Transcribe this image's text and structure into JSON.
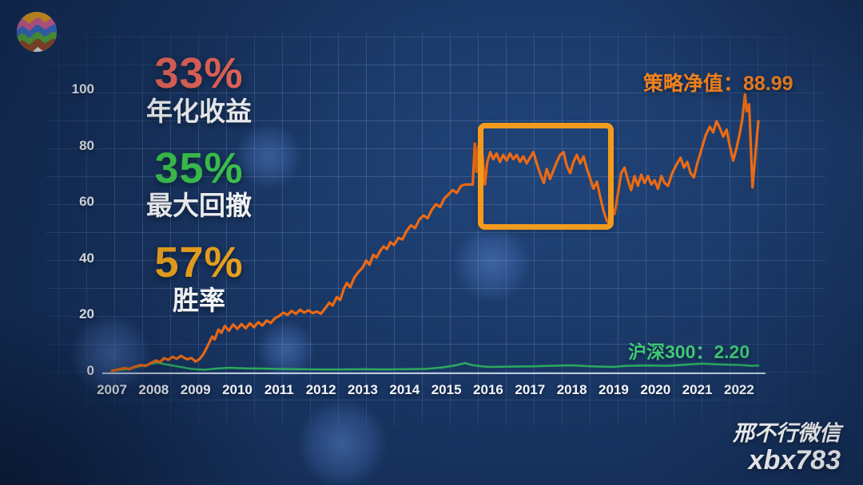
{
  "logo": {
    "name": "colorful-zigzag-logo"
  },
  "stats": [
    {
      "value": "33%",
      "label": "年化收益",
      "color": "#f4695c"
    },
    {
      "value": "35%",
      "label": "最大回撤",
      "color": "#3ecb4f"
    },
    {
      "value": "57%",
      "label": "胜率",
      "color": "#f2a51d"
    }
  ],
  "annotations": {
    "strategy_label": "策略净值：88.99",
    "benchmark_label": "沪深300：2.20"
  },
  "watermark": {
    "line1": "邢不行微信",
    "line2": "xbx783"
  },
  "colors": {
    "strategy_line": "#ec6a13",
    "benchmark_line": "#2aa95e",
    "strategy_label": "#f5821d",
    "benchmark_label": "#3fc878",
    "highlight_box": "#f39b1d",
    "axis_line": "#d9e4f4",
    "background": "#17335f"
  },
  "chart_data": {
    "type": "line",
    "title": "",
    "xlabel": "",
    "ylabel": "",
    "x_ticks": [
      2007,
      2008,
      2009,
      2010,
      2011,
      2012,
      2013,
      2014,
      2015,
      2016,
      2017,
      2018,
      2019,
      2020,
      2021,
      2022
    ],
    "y_ticks": [
      0,
      20,
      40,
      60,
      80,
      100
    ],
    "x_range": [
      2007.0,
      2022.6
    ],
    "y_range": [
      0,
      105
    ],
    "grid": true,
    "legend_position": "none",
    "highlight_box": {
      "x_from": 2015.75,
      "x_to": 2019.0,
      "y_from": 50.5,
      "y_to": 88.5
    },
    "series": [
      {
        "name": "策略净值",
        "color": "#ec6a13",
        "final_value": 88.99,
        "points": [
          [
            2007.0,
            0.3
          ],
          [
            2007.15,
            0.8
          ],
          [
            2007.3,
            1.3
          ],
          [
            2007.42,
            0.9
          ],
          [
            2007.55,
            1.8
          ],
          [
            2007.7,
            2.4
          ],
          [
            2007.8,
            2.0
          ],
          [
            2007.95,
            3.2
          ],
          [
            2008.05,
            4.0
          ],
          [
            2008.15,
            3.4
          ],
          [
            2008.25,
            4.8
          ],
          [
            2008.35,
            4.2
          ],
          [
            2008.45,
            5.3
          ],
          [
            2008.55,
            4.6
          ],
          [
            2008.65,
            5.6
          ],
          [
            2008.8,
            4.4
          ],
          [
            2008.9,
            4.9
          ],
          [
            2009.0,
            3.6
          ],
          [
            2009.1,
            4.5
          ],
          [
            2009.2,
            6.5
          ],
          [
            2009.3,
            9.5
          ],
          [
            2009.4,
            12.5
          ],
          [
            2009.46,
            11.5
          ],
          [
            2009.55,
            15.0
          ],
          [
            2009.62,
            13.8
          ],
          [
            2009.7,
            16.3
          ],
          [
            2009.8,
            14.6
          ],
          [
            2009.9,
            16.8
          ],
          [
            2010.0,
            15.2
          ],
          [
            2010.1,
            16.9
          ],
          [
            2010.2,
            15.4
          ],
          [
            2010.3,
            17.2
          ],
          [
            2010.4,
            15.8
          ],
          [
            2010.5,
            17.6
          ],
          [
            2010.6,
            16.4
          ],
          [
            2010.7,
            18.2
          ],
          [
            2010.8,
            17.3
          ],
          [
            2010.9,
            19.0
          ],
          [
            2011.0,
            19.8
          ],
          [
            2011.1,
            21.0
          ],
          [
            2011.2,
            20.2
          ],
          [
            2011.3,
            21.6
          ],
          [
            2011.4,
            20.6
          ],
          [
            2011.5,
            22.0
          ],
          [
            2011.6,
            21.0
          ],
          [
            2011.7,
            21.8
          ],
          [
            2011.8,
            20.8
          ],
          [
            2011.9,
            21.4
          ],
          [
            2012.0,
            20.6
          ],
          [
            2012.1,
            22.5
          ],
          [
            2012.2,
            24.5
          ],
          [
            2012.28,
            23.5
          ],
          [
            2012.38,
            26.5
          ],
          [
            2012.46,
            25.5
          ],
          [
            2012.55,
            29.5
          ],
          [
            2012.62,
            31.5
          ],
          [
            2012.7,
            30.0
          ],
          [
            2012.8,
            33.5
          ],
          [
            2012.9,
            35.5
          ],
          [
            2013.0,
            37.0
          ],
          [
            2013.08,
            39.5
          ],
          [
            2013.16,
            38.0
          ],
          [
            2013.25,
            41.5
          ],
          [
            2013.33,
            40.5
          ],
          [
            2013.42,
            43.0
          ],
          [
            2013.5,
            44.5
          ],
          [
            2013.58,
            43.5
          ],
          [
            2013.66,
            46.0
          ],
          [
            2013.75,
            45.0
          ],
          [
            2013.85,
            47.5
          ],
          [
            2013.95,
            47.0
          ],
          [
            2014.05,
            50.0
          ],
          [
            2014.15,
            52.0
          ],
          [
            2014.25,
            51.0
          ],
          [
            2014.35,
            54.0
          ],
          [
            2014.45,
            55.5
          ],
          [
            2014.55,
            54.5
          ],
          [
            2014.65,
            57.5
          ],
          [
            2014.75,
            59.5
          ],
          [
            2014.85,
            58.5
          ],
          [
            2014.95,
            61.5
          ],
          [
            2015.05,
            63.0
          ],
          [
            2015.15,
            64.5
          ],
          [
            2015.25,
            63.5
          ],
          [
            2015.35,
            66.0
          ],
          [
            2015.45,
            66.5
          ],
          [
            2015.55,
            66.5
          ],
          [
            2015.63,
            66.5
          ],
          [
            2015.68,
            81.0
          ],
          [
            2015.72,
            71.0
          ],
          [
            2015.76,
            80.0
          ],
          [
            2015.81,
            74.0
          ],
          [
            2015.86,
            77.5
          ],
          [
            2015.92,
            66.5
          ],
          [
            2015.98,
            74.5
          ],
          [
            2016.05,
            78.0
          ],
          [
            2016.12,
            75.5
          ],
          [
            2016.2,
            77.5
          ],
          [
            2016.28,
            74.5
          ],
          [
            2016.36,
            77.0
          ],
          [
            2016.44,
            75.0
          ],
          [
            2016.52,
            77.5
          ],
          [
            2016.6,
            75.5
          ],
          [
            2016.68,
            77.0
          ],
          [
            2016.76,
            74.5
          ],
          [
            2016.84,
            76.5
          ],
          [
            2016.92,
            74.0
          ],
          [
            2017.0,
            76.0
          ],
          [
            2017.08,
            78.0
          ],
          [
            2017.16,
            74.0
          ],
          [
            2017.25,
            70.0
          ],
          [
            2017.33,
            67.0
          ],
          [
            2017.4,
            72.0
          ],
          [
            2017.48,
            68.5
          ],
          [
            2017.56,
            71.5
          ],
          [
            2017.64,
            74.5
          ],
          [
            2017.72,
            77.0
          ],
          [
            2017.8,
            78.0
          ],
          [
            2017.88,
            73.0
          ],
          [
            2017.96,
            70.5
          ],
          [
            2018.04,
            74.5
          ],
          [
            2018.12,
            77.0
          ],
          [
            2018.2,
            74.0
          ],
          [
            2018.28,
            76.5
          ],
          [
            2018.36,
            72.0
          ],
          [
            2018.44,
            68.5
          ],
          [
            2018.52,
            65.0
          ],
          [
            2018.6,
            67.5
          ],
          [
            2018.68,
            62.0
          ],
          [
            2018.76,
            57.0
          ],
          [
            2018.84,
            53.5
          ],
          [
            2018.9,
            52.5
          ],
          [
            2018.96,
            58.5
          ],
          [
            2019.02,
            56.0
          ],
          [
            2019.1,
            63.0
          ],
          [
            2019.18,
            70.5
          ],
          [
            2019.26,
            72.5
          ],
          [
            2019.34,
            68.0
          ],
          [
            2019.42,
            64.5
          ],
          [
            2019.5,
            69.5
          ],
          [
            2019.58,
            66.0
          ],
          [
            2019.66,
            70.0
          ],
          [
            2019.74,
            67.0
          ],
          [
            2019.82,
            69.5
          ],
          [
            2019.9,
            66.5
          ],
          [
            2019.98,
            68.0
          ],
          [
            2020.06,
            65.0
          ],
          [
            2020.14,
            69.5
          ],
          [
            2020.22,
            67.0
          ],
          [
            2020.3,
            66.0
          ],
          [
            2020.4,
            70.5
          ],
          [
            2020.5,
            73.5
          ],
          [
            2020.6,
            76.0
          ],
          [
            2020.68,
            72.5
          ],
          [
            2020.76,
            74.5
          ],
          [
            2020.84,
            70.5
          ],
          [
            2020.92,
            69.0
          ],
          [
            2021.0,
            74.0
          ],
          [
            2021.1,
            79.0
          ],
          [
            2021.2,
            84.0
          ],
          [
            2021.3,
            87.0
          ],
          [
            2021.38,
            85.0
          ],
          [
            2021.46,
            89.0
          ],
          [
            2021.54,
            86.5
          ],
          [
            2021.62,
            83.5
          ],
          [
            2021.7,
            86.0
          ],
          [
            2021.78,
            80.0
          ],
          [
            2021.86,
            75.0
          ],
          [
            2021.94,
            79.5
          ],
          [
            2022.02,
            85.0
          ],
          [
            2022.08,
            90.0
          ],
          [
            2022.14,
            98.5
          ],
          [
            2022.18,
            92.5
          ],
          [
            2022.24,
            95.0
          ],
          [
            2022.32,
            65.5
          ],
          [
            2022.4,
            79.0
          ],
          [
            2022.46,
            88.99
          ]
        ]
      },
      {
        "name": "沪深300",
        "color": "#2aa95e",
        "final_value": 2.2,
        "points": [
          [
            2007.0,
            0.3
          ],
          [
            2007.3,
            0.8
          ],
          [
            2007.6,
            1.7
          ],
          [
            2007.9,
            2.7
          ],
          [
            2008.1,
            3.2
          ],
          [
            2008.3,
            2.6
          ],
          [
            2008.6,
            1.8
          ],
          [
            2008.9,
            1.0
          ],
          [
            2009.2,
            0.7
          ],
          [
            2009.5,
            1.1
          ],
          [
            2009.8,
            1.4
          ],
          [
            2010.2,
            1.2
          ],
          [
            2010.6,
            1.1
          ],
          [
            2011.0,
            1.0
          ],
          [
            2011.5,
            0.9
          ],
          [
            2012.0,
            0.8
          ],
          [
            2012.5,
            0.8
          ],
          [
            2013.0,
            0.9
          ],
          [
            2013.5,
            0.8
          ],
          [
            2014.0,
            0.9
          ],
          [
            2014.5,
            1.0
          ],
          [
            2014.9,
            1.5
          ],
          [
            2015.2,
            2.2
          ],
          [
            2015.45,
            3.1
          ],
          [
            2015.6,
            2.4
          ],
          [
            2015.8,
            2.0
          ],
          [
            2016.0,
            1.7
          ],
          [
            2016.5,
            1.8
          ],
          [
            2017.0,
            1.9
          ],
          [
            2017.5,
            2.1
          ],
          [
            2018.0,
            2.3
          ],
          [
            2018.5,
            1.9
          ],
          [
            2019.0,
            1.7
          ],
          [
            2019.3,
            2.1
          ],
          [
            2019.8,
            2.2
          ],
          [
            2020.3,
            2.1
          ],
          [
            2020.8,
            2.6
          ],
          [
            2021.1,
            2.9
          ],
          [
            2021.5,
            2.6
          ],
          [
            2022.0,
            2.4
          ],
          [
            2022.3,
            2.1
          ],
          [
            2022.46,
            2.2
          ]
        ]
      }
    ]
  }
}
